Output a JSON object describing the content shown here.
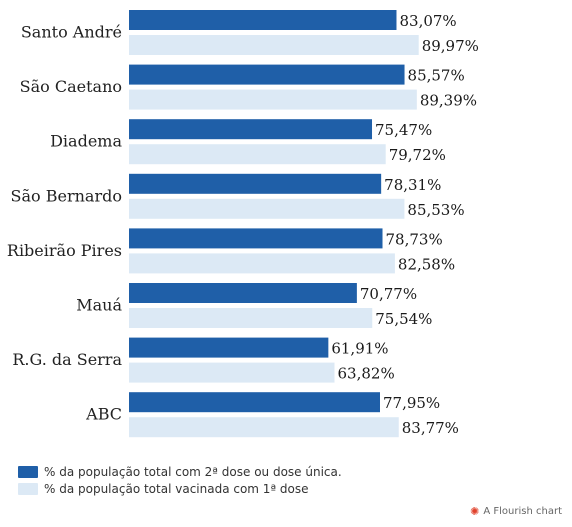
{
  "chart_data": {
    "type": "bar",
    "orientation": "horizontal",
    "categories": [
      "Santo André",
      "São Caetano",
      "Diadema",
      "São Bernardo",
      "Ribeirão Pires",
      "Mauá",
      "R.G. da Serra",
      "ABC"
    ],
    "series": [
      {
        "name": "% da população total com 2ª dose ou dose única.",
        "color": "#1f5fa8",
        "values": [
          83.07,
          85.57,
          75.47,
          78.31,
          78.73,
          70.77,
          61.91,
          77.95
        ],
        "labels": [
          "83,07%",
          "85,57%",
          "75,47%",
          "78,31%",
          "78,73%",
          "70,77%",
          "61,91%",
          "77,95%"
        ]
      },
      {
        "name": "% da população total vacinada com 1ª dose",
        "color": "#dce9f5",
        "values": [
          89.97,
          89.39,
          79.72,
          85.53,
          82.58,
          75.54,
          63.82,
          83.77
        ],
        "labels": [
          "89,97%",
          "89,39%",
          "79,72%",
          "85,53%",
          "82,58%",
          "75,54%",
          "63,82%",
          "83,77%"
        ]
      }
    ],
    "xlim": [
      0,
      100
    ],
    "grid": false,
    "legend_position": "bottom-left"
  },
  "credit": {
    "text": "A Flourish chart",
    "icon": "flourish-logo-icon"
  }
}
